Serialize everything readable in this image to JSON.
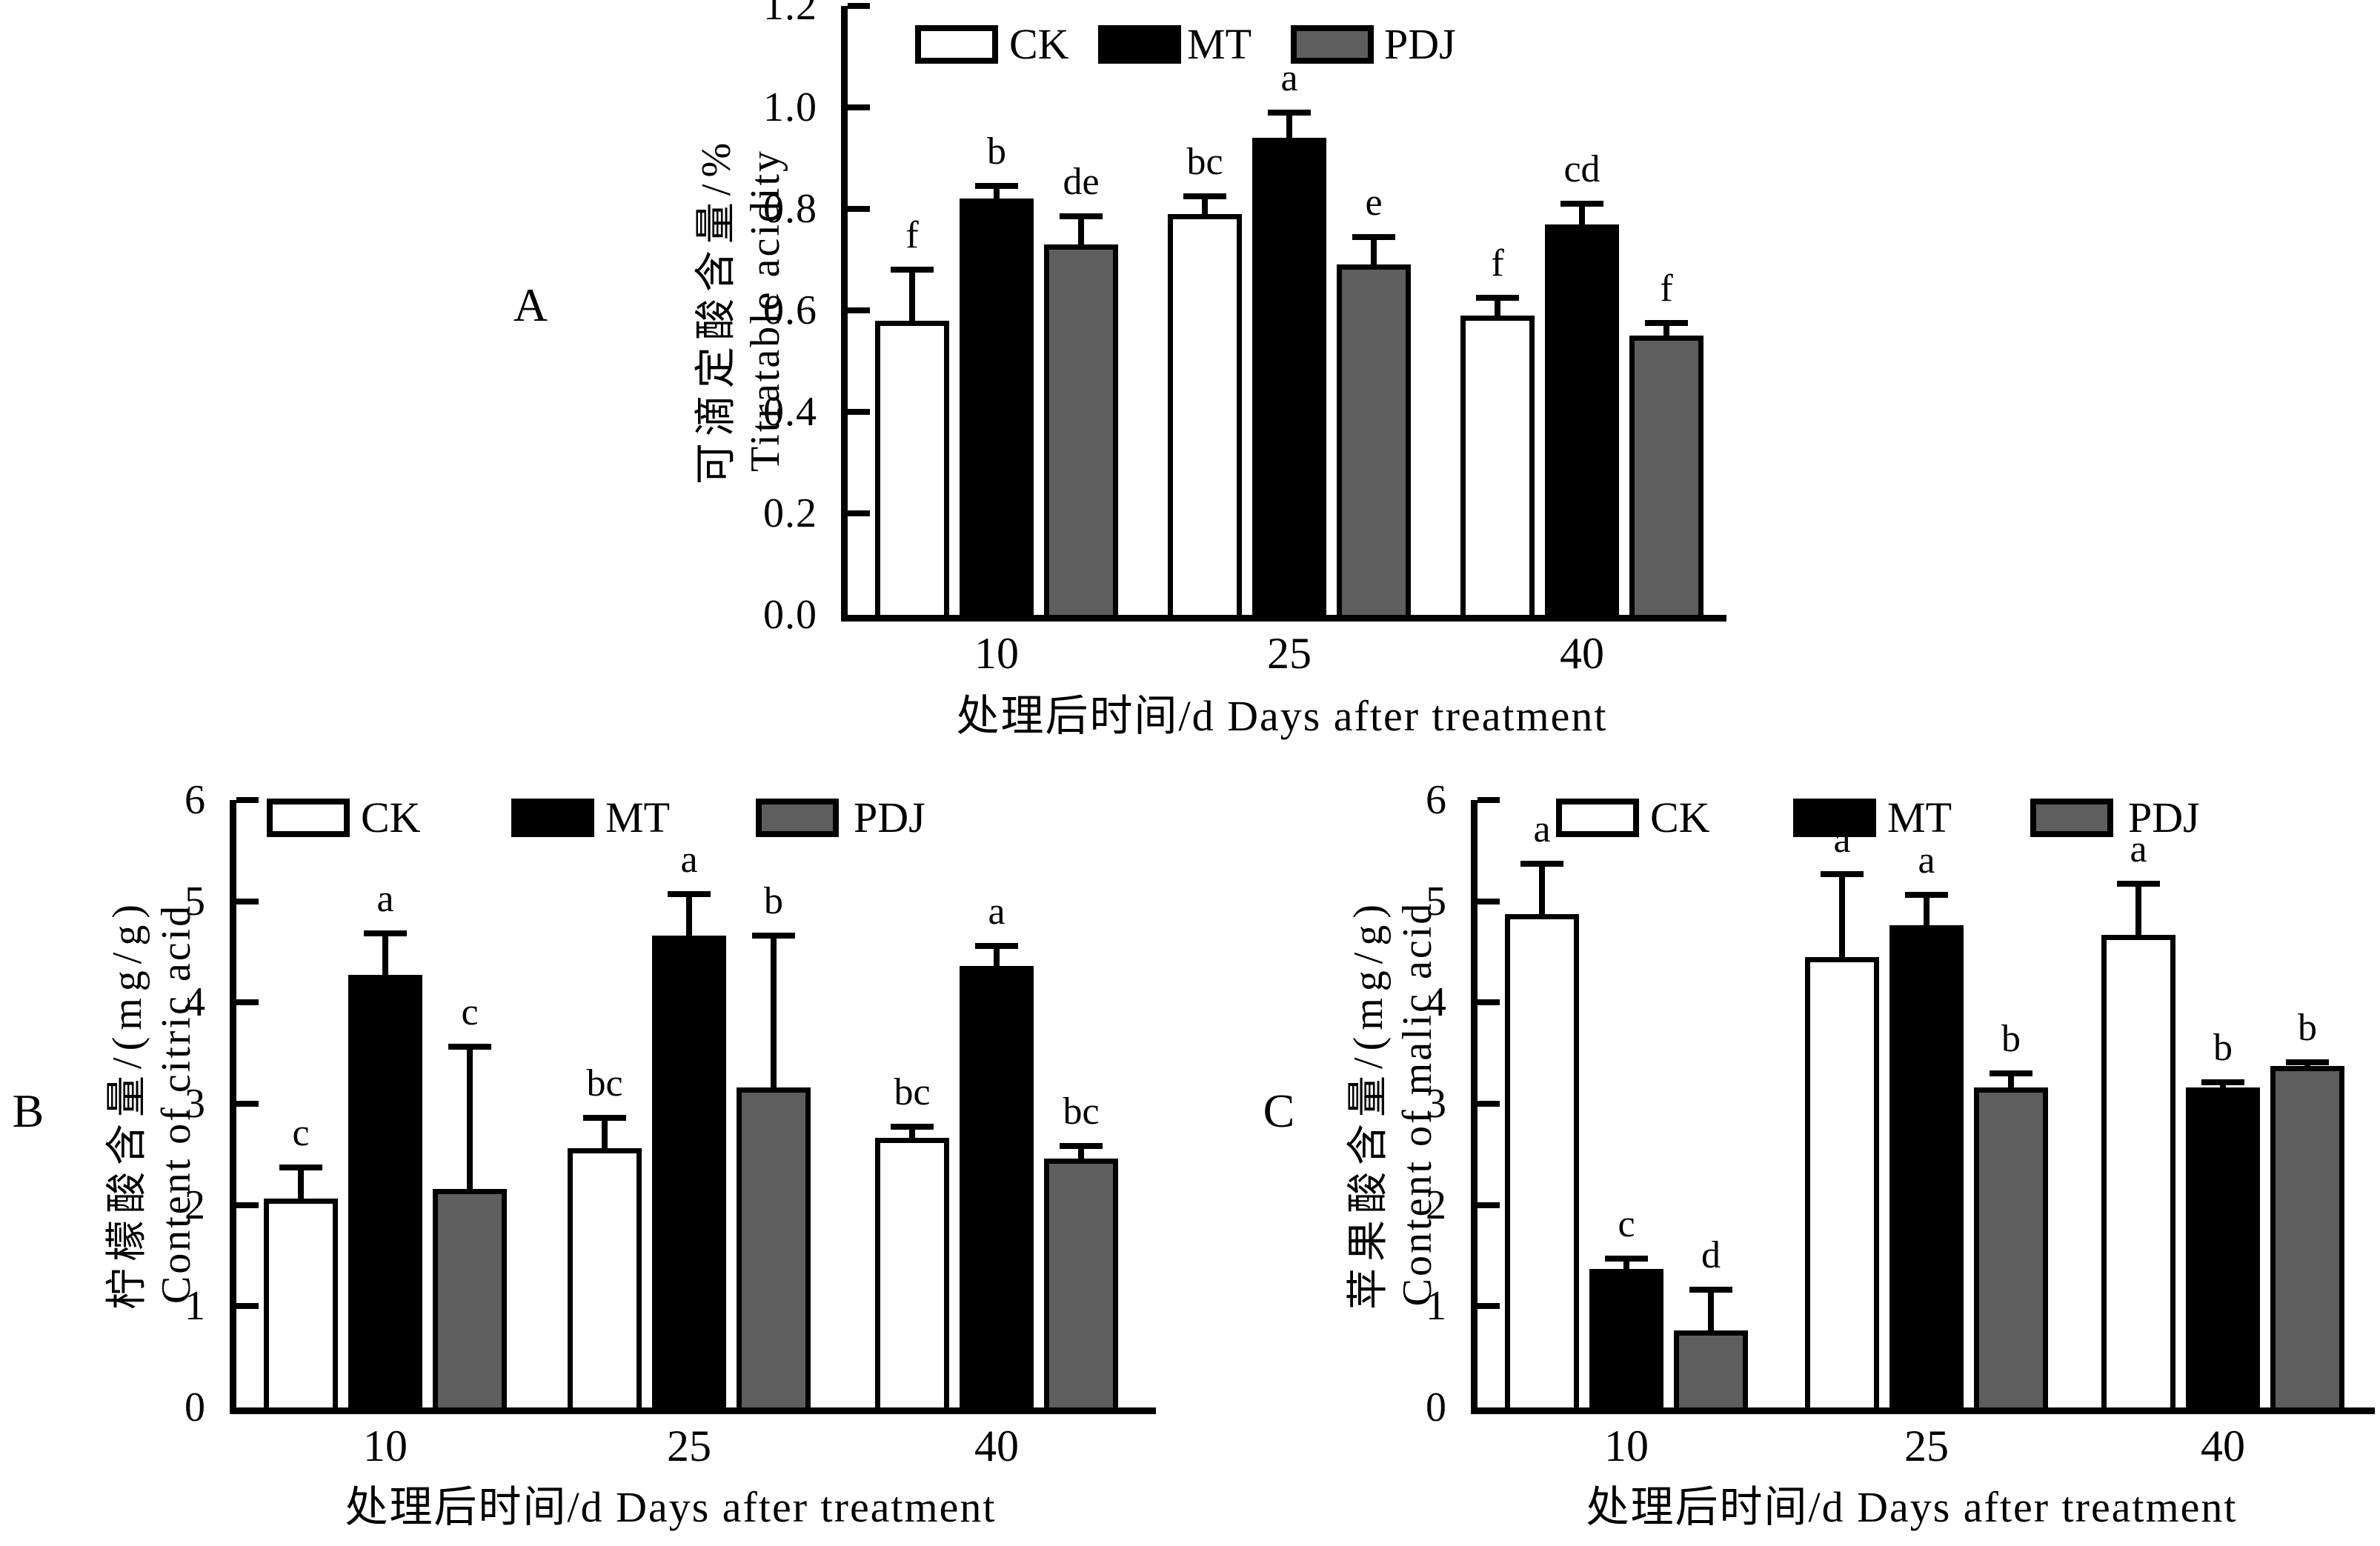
{
  "figure_background": "#ffffff",
  "series_colors": {
    "CK": "#ffffff",
    "MT": "#000000",
    "PDJ": "#5e5e5e"
  },
  "chart_data": [
    {
      "type": "bar",
      "panel_label": "A",
      "ylabel_zh": "可滴定酸含量/%",
      "ylabel_en": "Titratable acidity",
      "xlabel": "处理后时间/d Days after treatment",
      "ylim": [
        0,
        1.2
      ],
      "yticks": [
        "0.0",
        "0.2",
        "0.4",
        "0.6",
        "0.8",
        "1.0",
        "1.2"
      ],
      "categories": [
        "10",
        "25",
        "40"
      ],
      "legend_position": "top",
      "grid": false,
      "series": [
        {
          "name": "CK",
          "fill": "#ffffff",
          "values": [
            0.58,
            0.79,
            0.59
          ],
          "errors": [
            0.1,
            0.035,
            0.035
          ],
          "letters": [
            "f",
            "bc",
            "f"
          ]
        },
        {
          "name": "MT",
          "fill": "#000000",
          "values": [
            0.82,
            0.94,
            0.77
          ],
          "errors": [
            0.025,
            0.05,
            0.04
          ],
          "letters": [
            "b",
            "a",
            "cd"
          ]
        },
        {
          "name": "PDJ",
          "fill": "#5e5e5e",
          "values": [
            0.73,
            0.69,
            0.55
          ],
          "errors": [
            0.055,
            0.055,
            0.025
          ],
          "letters": [
            "de",
            "e",
            "f"
          ]
        }
      ]
    },
    {
      "type": "bar",
      "panel_label": "B",
      "ylabel_zh": "柠檬酸含量/(mg/g)",
      "ylabel_en": "Content of citric acid",
      "xlabel": "处理后时间/d Days after treatment",
      "ylim": [
        0,
        6
      ],
      "yticks": [
        "0",
        "1",
        "2",
        "3",
        "4",
        "5",
        "6"
      ],
      "categories": [
        "10",
        "25",
        "40"
      ],
      "legend_position": "top",
      "grid": false,
      "series": [
        {
          "name": "CK",
          "fill": "#ffffff",
          "values": [
            2.06,
            2.56,
            2.66
          ],
          "errors": [
            0.31,
            0.3,
            0.11
          ],
          "letters": [
            "c",
            "bc",
            "bc"
          ]
        },
        {
          "name": "MT",
          "fill": "#000000",
          "values": [
            4.27,
            4.66,
            4.36
          ],
          "errors": [
            0.41,
            0.41,
            0.2
          ],
          "letters": [
            "a",
            "a",
            "a"
          ]
        },
        {
          "name": "PDJ",
          "fill": "#5e5e5e",
          "values": [
            2.16,
            3.16,
            2.46
          ],
          "errors": [
            1.4,
            1.5,
            0.12
          ],
          "letters": [
            "c",
            "b",
            "bc"
          ]
        }
      ]
    },
    {
      "type": "bar",
      "panel_label": "C",
      "ylabel_zh": "苹果酸含量/(mg/g)",
      "ylabel_en": "Content of malic acid",
      "xlabel": "处理后时间/d Days after treatment",
      "ylim": [
        0,
        6
      ],
      "yticks": [
        "0",
        "1",
        "2",
        "3",
        "4",
        "5",
        "6"
      ],
      "categories": [
        "10",
        "25",
        "40"
      ],
      "legend_position": "top",
      "grid": false,
      "series": [
        {
          "name": "CK",
          "fill": "#ffffff",
          "values": [
            4.87,
            4.45,
            4.67
          ],
          "errors": [
            0.5,
            0.82,
            0.5
          ],
          "letters": [
            "a",
            "a",
            "a"
          ]
        },
        {
          "name": "MT",
          "fill": "#000000",
          "values": [
            1.37,
            4.76,
            3.16
          ],
          "errors": [
            0.1,
            0.3,
            0.05
          ],
          "letters": [
            "c",
            "a",
            "b"
          ]
        },
        {
          "name": "PDJ",
          "fill": "#5e5e5e",
          "values": [
            0.76,
            3.16,
            3.37
          ],
          "errors": [
            0.4,
            0.14,
            0.04
          ],
          "letters": [
            "d",
            "b",
            "b"
          ]
        }
      ]
    }
  ]
}
